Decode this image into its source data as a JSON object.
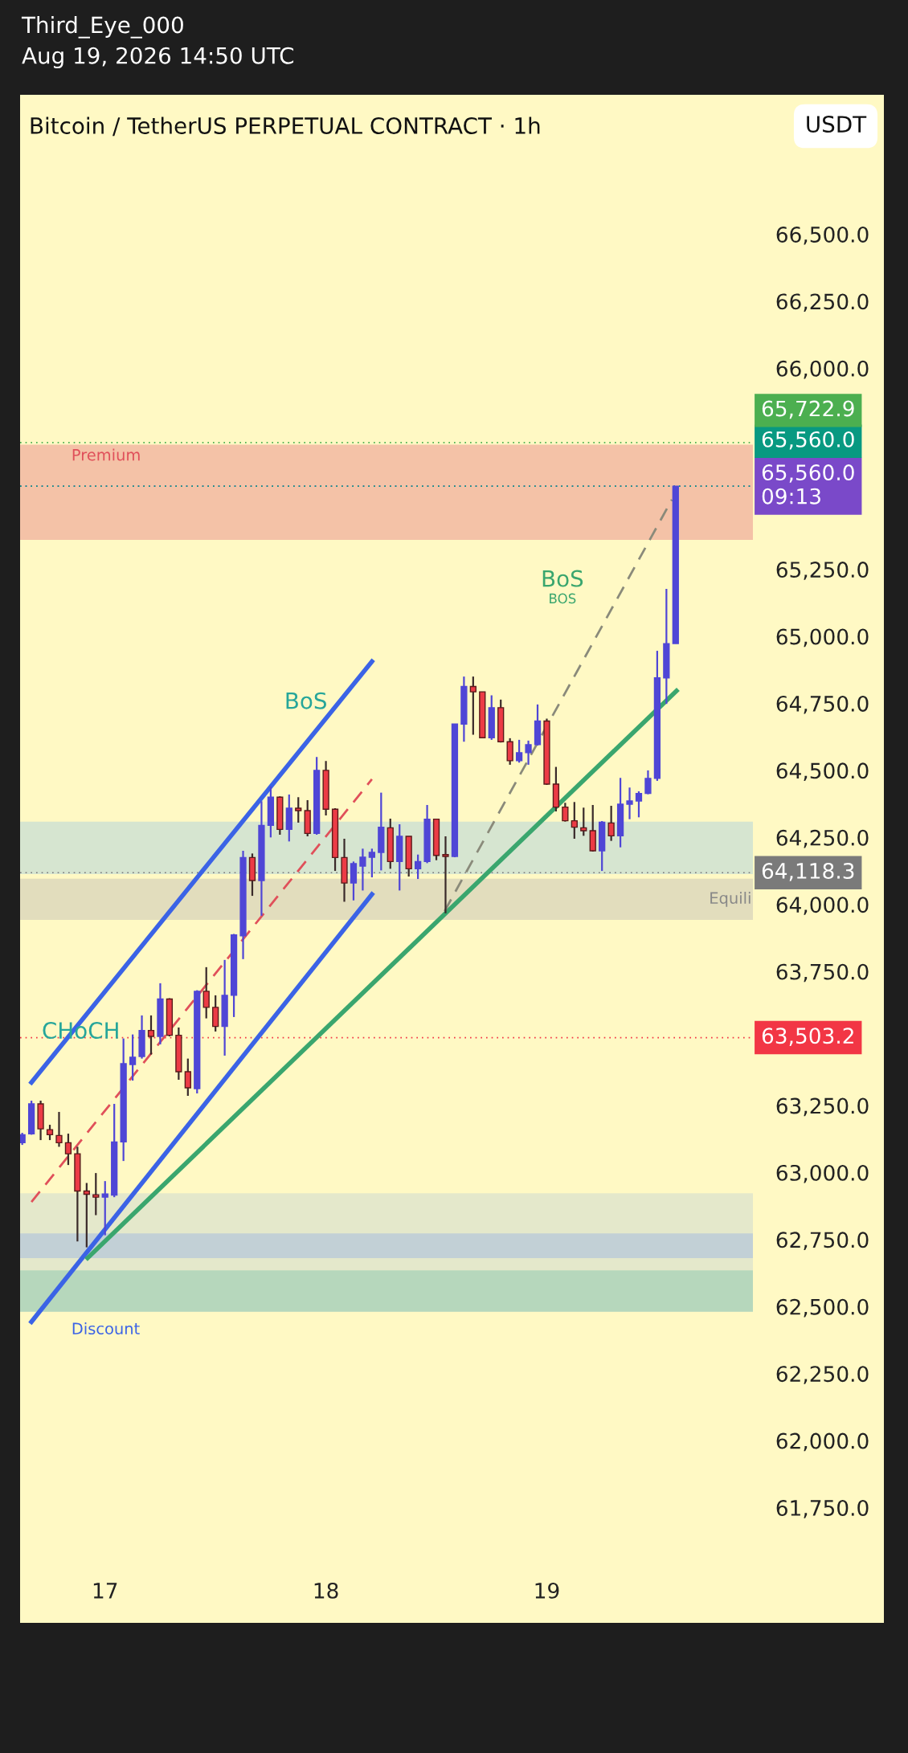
{
  "chart_data": {
    "type": "candlestick",
    "title": "Bitcoin / TetherUS PERPETUAL CONTRACT · 1h",
    "subtitle": "Third_Eye_000\nAug 19, 2026 14:50 UTC",
    "ylabel": "USDT",
    "x": [
      "2026-08-16T15:00",
      "2026-08-16T16:00",
      "2026-08-16T17:00",
      "2026-08-16T18:00",
      "2026-08-16T19:00",
      "2026-08-16T20:00",
      "2026-08-16T21:00",
      "2026-08-16T22:00",
      "2026-08-16T23:00",
      "2026-08-17T00:00",
      "2026-08-17T01:00",
      "2026-08-17T02:00",
      "2026-08-17T03:00",
      "2026-08-17T04:00",
      "2026-08-17T05:00",
      "2026-08-17T06:00",
      "2026-08-17T07:00",
      "2026-08-17T08:00",
      "2026-08-17T09:00",
      "2026-08-17T10:00",
      "2026-08-17T11:00",
      "2026-08-17T12:00",
      "2026-08-17T13:00",
      "2026-08-17T14:00",
      "2026-08-17T15:00",
      "2026-08-17T16:00",
      "2026-08-17T17:00",
      "2026-08-17T18:00",
      "2026-08-17T19:00",
      "2026-08-17T20:00",
      "2026-08-17T21:00",
      "2026-08-17T22:00",
      "2026-08-17T23:00",
      "2026-08-18T00:00",
      "2026-08-18T01:00",
      "2026-08-18T02:00",
      "2026-08-18T03:00",
      "2026-08-18T04:00",
      "2026-08-18T05:00",
      "2026-08-18T06:00",
      "2026-08-18T07:00",
      "2026-08-18T08:00",
      "2026-08-18T09:00",
      "2026-08-18T10:00",
      "2026-08-18T11:00",
      "2026-08-18T12:00",
      "2026-08-18T13:00",
      "2026-08-18T14:00",
      "2026-08-18T15:00",
      "2026-08-18T16:00",
      "2026-08-18T17:00",
      "2026-08-18T18:00",
      "2026-08-18T19:00",
      "2026-08-18T20:00",
      "2026-08-18T21:00",
      "2026-08-18T22:00",
      "2026-08-18T23:00",
      "2026-08-19T00:00",
      "2026-08-19T01:00",
      "2026-08-19T02:00",
      "2026-08-19T03:00",
      "2026-08-19T04:00",
      "2026-08-19T05:00",
      "2026-08-19T06:00",
      "2026-08-19T07:00",
      "2026-08-19T08:00",
      "2026-08-19T09:00",
      "2026-08-19T10:00",
      "2026-08-19T11:00",
      "2026-08-19T12:00",
      "2026-08-19T13:00",
      "2026-08-19T14:00"
    ],
    "ohlc": [
      [
        63111,
        63148,
        63103,
        63141
      ],
      [
        63144,
        63268,
        63141,
        63256
      ],
      [
        63256,
        63268,
        63121,
        63163
      ],
      [
        63160,
        63178,
        63121,
        63141
      ],
      [
        63138,
        63226,
        63096,
        63111
      ],
      [
        63111,
        63145,
        63028,
        63070
      ],
      [
        63070,
        63096,
        62743,
        62931
      ],
      [
        62931,
        62961,
        62721,
        62919
      ],
      [
        62917,
        62998,
        62841,
        62908
      ],
      [
        62908,
        62968,
        62766,
        62920
      ],
      [
        62916,
        63256,
        62908,
        63114
      ],
      [
        63114,
        63500,
        63043,
        63406
      ],
      [
        63403,
        63515,
        63343,
        63430
      ],
      [
        63433,
        63586,
        63425,
        63530
      ],
      [
        63530,
        63586,
        63440,
        63508
      ],
      [
        63508,
        63706,
        63478,
        63647
      ],
      [
        63647,
        63650,
        63508,
        63512
      ],
      [
        63512,
        63541,
        63346,
        63376
      ],
      [
        63376,
        63425,
        63286,
        63316
      ],
      [
        63313,
        63680,
        63295,
        63676
      ],
      [
        63676,
        63766,
        63575,
        63616
      ],
      [
        63616,
        63661,
        63526,
        63545
      ],
      [
        63545,
        63793,
        63436,
        63661
      ],
      [
        63661,
        63890,
        63580,
        63886
      ],
      [
        63883,
        64200,
        63796,
        64175
      ],
      [
        64175,
        64190,
        64032,
        64089
      ],
      [
        64089,
        64385,
        63958,
        64295
      ],
      [
        64295,
        64440,
        64250,
        64400
      ],
      [
        64400,
        64403,
        64260,
        64280
      ],
      [
        64280,
        64410,
        64235,
        64359
      ],
      [
        64359,
        64400,
        64305,
        64350
      ],
      [
        64350,
        64389,
        64254,
        64265
      ],
      [
        64265,
        64550,
        64260,
        64500
      ],
      [
        64500,
        64535,
        64332,
        64355
      ],
      [
        64355,
        64359,
        64125,
        64175
      ],
      [
        64175,
        64245,
        64010,
        64080
      ],
      [
        64080,
        64160,
        64015,
        64152
      ],
      [
        64143,
        64208,
        64052,
        64176
      ],
      [
        64176,
        64208,
        64101,
        64194
      ],
      [
        64194,
        64417,
        64127,
        64288
      ],
      [
        64286,
        64320,
        64133,
        64160
      ],
      [
        64160,
        64299,
        64052,
        64254
      ],
      [
        64254,
        64254,
        64104,
        64133
      ],
      [
        64133,
        64186,
        64095,
        64160
      ],
      [
        64160,
        64371,
        64154,
        64318
      ],
      [
        64318,
        64318,
        64165,
        64183
      ],
      [
        64186,
        64254,
        63967,
        64179
      ],
      [
        64179,
        64673,
        64176,
        64673
      ],
      [
        64673,
        64850,
        64607,
        64813
      ],
      [
        64813,
        64850,
        64633,
        64793
      ],
      [
        64793,
        64793,
        64622,
        64622
      ],
      [
        64622,
        64780,
        64614,
        64734
      ],
      [
        64734,
        64764,
        64604,
        64607
      ],
      [
        64607,
        64620,
        64521,
        64536
      ],
      [
        64536,
        64614,
        64529,
        64566
      ],
      [
        64566,
        64611,
        64521,
        64596
      ],
      [
        64596,
        64746,
        64593,
        64684
      ],
      [
        64684,
        64693,
        64446,
        64449
      ],
      [
        64449,
        64513,
        64347,
        64363
      ],
      [
        64363,
        64379,
        64309,
        64312
      ],
      [
        64312,
        64382,
        64245,
        64288
      ],
      [
        64286,
        64361,
        64256,
        64275
      ],
      [
        64275,
        64371,
        64197,
        64200
      ],
      [
        64200,
        64311,
        64125,
        64307
      ],
      [
        64304,
        64368,
        64237,
        64256
      ],
      [
        64256,
        64472,
        64213,
        64374
      ],
      [
        64374,
        64436,
        64318,
        64386
      ],
      [
        64386,
        64422,
        64325,
        64414
      ],
      [
        64414,
        64500,
        64411,
        64470
      ],
      [
        64470,
        64946,
        64461,
        64845
      ],
      [
        64845,
        65177,
        64748,
        64973
      ],
      [
        64973,
        65560,
        64973,
        65560
      ]
    ],
    "colors": [
      "#4f46d6",
      "#4f46d6",
      "#ec3b45",
      "#ec3b45",
      "#ec3b45",
      "#ec3b45",
      "#ec3b45",
      "#ec3b45",
      "#ec3b45",
      "#4f46d6",
      "#4f46d6",
      "#4f46d6",
      "#4f46d6",
      "#4f46d6",
      "#ec3b45",
      "#4f46d6",
      "#ec3b45",
      "#ec3b45",
      "#ec3b45",
      "#4f46d6",
      "#ec3b45",
      "#ec3b45",
      "#4f46d6",
      "#4f46d6",
      "#4f46d6",
      "#ec3b45",
      "#4f46d6",
      "#4f46d6",
      "#ec3b45",
      "#4f46d6",
      "#ec3b45",
      "#ec3b45",
      "#4f46d6",
      "#ec3b45",
      "#ec3b45",
      "#ec3b45",
      "#4f46d6",
      "#4f46d6",
      "#4f46d6",
      "#4f46d6",
      "#ec3b45",
      "#4f46d6",
      "#ec3b45",
      "#4f46d6",
      "#4f46d6",
      "#ec3b45",
      "#ec3b45",
      "#4f46d6",
      "#4f46d6",
      "#ec3b45",
      "#ec3b45",
      "#4f46d6",
      "#ec3b45",
      "#ec3b45",
      "#4f46d6",
      "#4f46d6",
      "#4f46d6",
      "#ec3b45",
      "#ec3b45",
      "#ec3b45",
      "#ec3b45",
      "#ec3b45",
      "#ec3b45",
      "#4f46d6",
      "#ec3b45",
      "#4f46d6",
      "#4f46d6",
      "#4f46d6",
      "#4f46d6",
      "#4f46d6",
      "#4f46d6",
      "#4f46d6"
    ],
    "series": [
      {
        "type": "line",
        "x": [
          "2026-08-16T16:00",
          "2026-08-18T05:00"
        ],
        "values": [
          63336,
          64906
        ],
        "color": "#3b63e6",
        "line_style": "solid"
      },
      {
        "type": "line",
        "x": [
          "2026-08-16T16:00",
          "2026-08-18T05:00"
        ],
        "values": [
          62443,
          64038
        ],
        "color": "#3b63e6",
        "line_style": "solid"
      },
      {
        "type": "line",
        "x": [
          "2026-08-16T16:00",
          "2026-08-18T05:00"
        ],
        "values": [
          62890,
          64467
        ],
        "color": "#e0505a",
        "line_style": "dashed"
      },
      {
        "type": "line",
        "x": [
          "2026-08-16T22:06",
          "2026-08-19T14:06"
        ],
        "values": [
          62681,
          64797
        ],
        "color": "#3aa66e",
        "line_style": "solid"
      },
      {
        "type": "line",
        "x": [
          "2026-08-18T12:54",
          "2026-08-19T13:36"
        ],
        "values": [
          63975,
          65510
        ],
        "color": "#8a8a7a",
        "line_style": "dashed"
      }
    ],
    "bands": [
      {
        "axis": "y",
        "from": 65360,
        "to": 65715,
        "label": "Premium",
        "color": "#f2b8a2"
      },
      {
        "axis": "y",
        "from": 64113,
        "to": 64309,
        "label": null,
        "color": "#cfe2d2"
      },
      {
        "axis": "y",
        "from": 63942,
        "to": 64096,
        "label": "Equili",
        "color": "#ddd8bc"
      },
      {
        "axis": "y",
        "from": 62481,
        "to": 62923,
        "label": "Discount",
        "color": "#dfe5cc"
      },
      {
        "axis": "y",
        "from": 62681,
        "to": 62773,
        "label": null,
        "color": "#bccbd8"
      },
      {
        "axis": "y",
        "from": 62481,
        "to": 62635,
        "label": null,
        "color": "#aed4ba"
      }
    ],
    "ref_lines": [
      {
        "axis": "y",
        "value": 65722.9,
        "label": "65,722.9",
        "color": "#4caf50",
        "line_style": "dotted"
      },
      {
        "axis": "y",
        "value": 65560.0,
        "label": "65,560.0",
        "color": "#089981",
        "line_style": "dotted"
      },
      {
        "axis": "y",
        "value": 65560.0,
        "label": "65,560.0\n09:13",
        "color": "#7a49c9",
        "line_style": "dotted"
      },
      {
        "axis": "y",
        "value": 64118.3,
        "label": "64,118.3",
        "color": "#7a7a7a",
        "line_style": "dotted"
      },
      {
        "axis": "y",
        "value": 63503.2,
        "label": "63,503.2",
        "color": "#f23645",
        "line_style": "dotted"
      }
    ],
    "annotations": [
      "CHoCH",
      "BoS",
      "BoS",
      "BOS"
    ],
    "xlim": [
      "2026-08-16T14:46",
      "2026-08-19T22:24"
    ],
    "xticks": [
      {
        "value": "2026-08-17T00:00",
        "label": "17"
      },
      {
        "value": "2026-08-18T00:00",
        "label": "18"
      },
      {
        "value": "2026-08-19T00:00",
        "label": "19"
      }
    ],
    "ylim": [
      61530,
      67020
    ],
    "yticks": [
      {
        "value": 61750,
        "label": "61,750.0"
      },
      {
        "value": 62000,
        "label": "62,000.0"
      },
      {
        "value": 62250,
        "label": "62,250.0"
      },
      {
        "value": 62500,
        "label": "62,500.0"
      },
      {
        "value": 62750,
        "label": "62,750.0"
      },
      {
        "value": 63000,
        "label": "63,000.0"
      },
      {
        "value": 63250,
        "label": "63,250.0"
      },
      {
        "value": 63750,
        "label": "63,750.0"
      },
      {
        "value": 64000,
        "label": "64,000.0"
      },
      {
        "value": 64250,
        "label": "64,250.0"
      },
      {
        "value": 64500,
        "label": "64,500.0"
      },
      {
        "value": 64750,
        "label": "64,750.0"
      },
      {
        "value": 65000,
        "label": "65,000.0"
      },
      {
        "value": 65250,
        "label": "65,250.0"
      },
      {
        "value": 66000,
        "label": "66,000.0"
      },
      {
        "value": 66250,
        "label": "66,250.0"
      },
      {
        "value": 66500,
        "label": "66,500.0"
      }
    ]
  }
}
